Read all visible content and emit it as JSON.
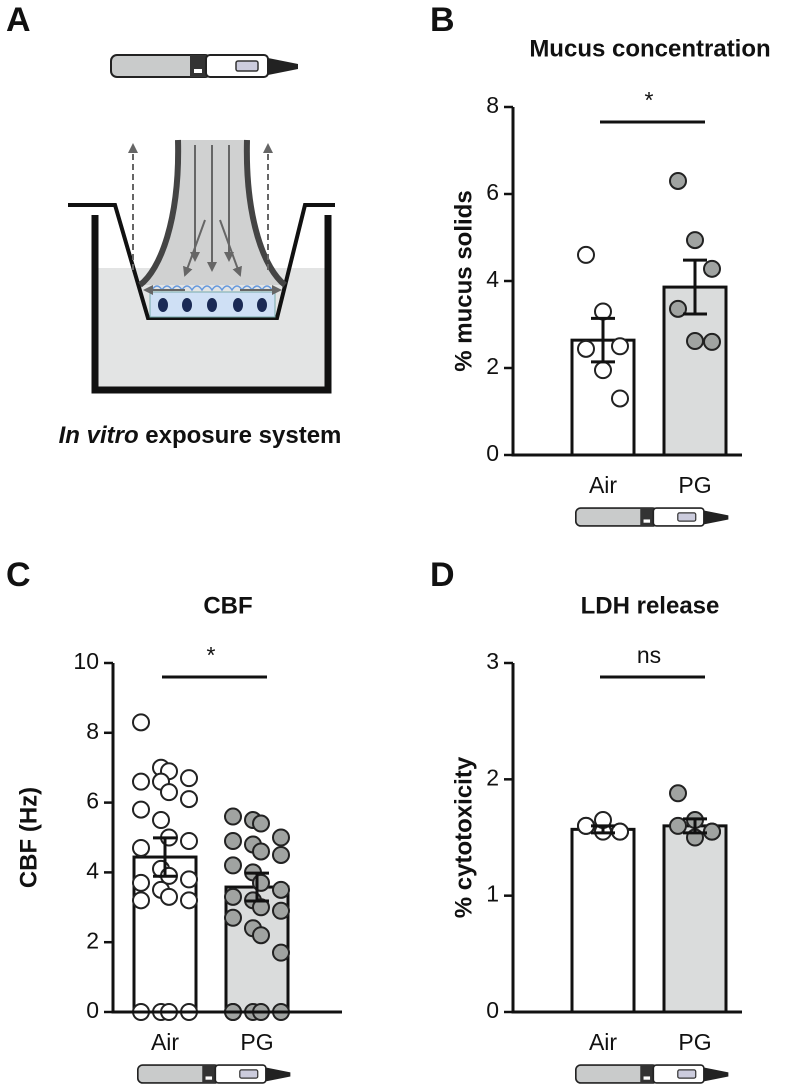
{
  "panel_labels": [
    "A",
    "B",
    "C",
    "D"
  ],
  "diagram_caption": {
    "italic": "In vitro",
    "text": "exposure system"
  },
  "chart_data": [
    {
      "type": "bar",
      "title": "Mucus concentration",
      "ylabel": "% mucus solids",
      "categories": [
        "Air",
        "PG"
      ],
      "values": [
        2.64,
        3.86
      ],
      "errors": [
        0.5,
        0.62
      ],
      "points": [
        [
          4.6,
          3.3,
          2.5,
          2.44,
          1.95,
          1.3
        ],
        [
          6.3,
          4.94,
          4.28,
          3.36,
          2.62,
          2.6
        ]
      ],
      "bar_colors": [
        "#ffffff",
        "#dadcdc"
      ],
      "point_colors": [
        "#ffffff",
        "#a0a3a1"
      ],
      "annotation": "*",
      "ylim": [
        0,
        8
      ],
      "yticks": [
        0,
        2,
        4,
        6,
        8
      ]
    },
    {
      "type": "bar",
      "title": "CBF",
      "ylabel": "CBF (Hz)",
      "categories": [
        "Air",
        "PG"
      ],
      "values": [
        4.44,
        3.58
      ],
      "errors": [
        0.55,
        0.4
      ],
      "points": [
        [
          8.3,
          7.0,
          6.9,
          6.7,
          6.6,
          6.6,
          6.3,
          6.1,
          5.8,
          5.5,
          5.0,
          4.9,
          4.7,
          4.1,
          3.9,
          3.8,
          3.7,
          3.5,
          3.3,
          3.2,
          3.2,
          0,
          0,
          0,
          0
        ],
        [
          5.6,
          5.5,
          5.4,
          5.0,
          4.9,
          4.8,
          4.6,
          4.5,
          4.2,
          4.0,
          3.7,
          3.5,
          3.3,
          3.2,
          3.0,
          2.9,
          2.7,
          2.4,
          2.2,
          1.7,
          0,
          0,
          0,
          0,
          0
        ]
      ],
      "bar_colors": [
        "#ffffff",
        "#dadcdc"
      ],
      "point_colors": [
        "#ffffff",
        "#a0a3a1"
      ],
      "annotation": "*",
      "ylim": [
        0,
        10
      ],
      "yticks": [
        0,
        2,
        4,
        6,
        8,
        10
      ]
    },
    {
      "type": "bar",
      "title": "LDH release",
      "ylabel": "% cytotoxicity",
      "categories": [
        "Air",
        "PG"
      ],
      "values": [
        1.57,
        1.6
      ],
      "errors": [
        0.03,
        0.06
      ],
      "points": [
        [
          1.6,
          1.55,
          1.55,
          1.6,
          1.65,
          1.55
        ],
        [
          1.88,
          1.65,
          1.55,
          1.6,
          1.5,
          1.55
        ]
      ],
      "bar_colors": [
        "#ffffff",
        "#dadcdc"
      ],
      "point_colors": [
        "#ffffff",
        "#a0a3a1"
      ],
      "annotation": "ns",
      "ylim": [
        0,
        3
      ],
      "yticks": [
        0,
        1,
        2,
        3
      ]
    }
  ]
}
